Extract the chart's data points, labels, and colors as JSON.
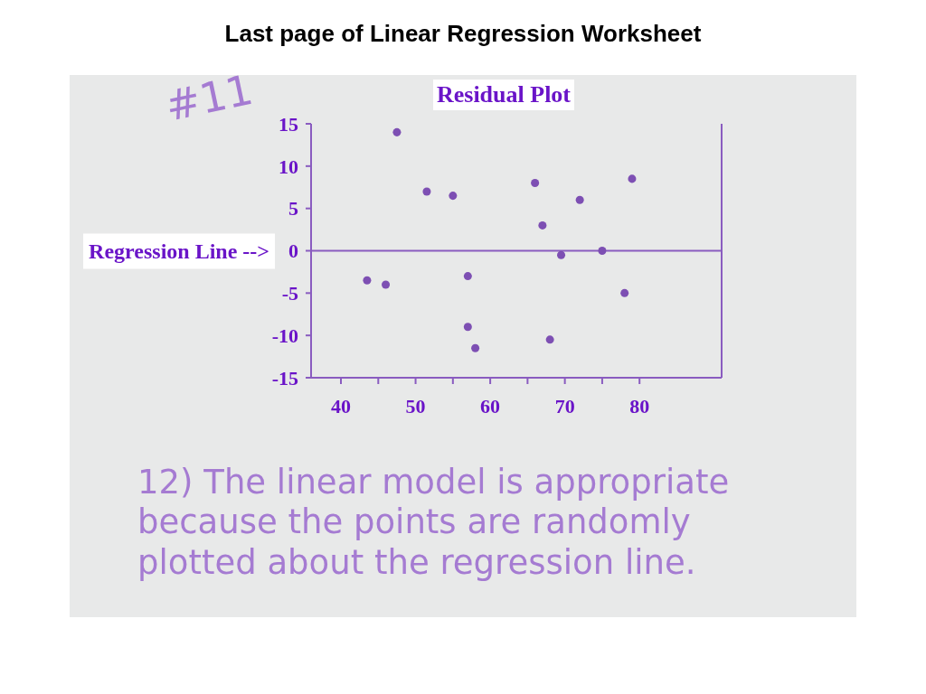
{
  "chart_data": {
    "type": "scatter",
    "title": "Last page of Linear Regression Worksheet",
    "subtitle": "Residual Plot",
    "x": [
      43.5,
      46,
      47.5,
      51.5,
      55,
      57,
      57,
      58,
      66,
      67,
      68,
      69.5,
      72,
      75,
      78,
      79
    ],
    "values": [
      -3.5,
      -4,
      14,
      7,
      6.5,
      -3,
      -9,
      -11.5,
      8,
      3,
      -10.5,
      -0.5,
      6,
      0,
      -5,
      8.5
    ],
    "color": "#7d4fb3",
    "marker": "circle",
    "xlim": [
      36,
      91
    ],
    "ylim": [
      -15,
      15
    ],
    "xticks": [
      40,
      {
        "value": 45,
        "label": null
      },
      50,
      {
        "value": 55,
        "label": null
      },
      60,
      {
        "value": 65,
        "label": null
      },
      70,
      {
        "value": 75,
        "label": null
      },
      80
    ],
    "yticks": [
      -15,
      -10,
      -5,
      0,
      5,
      10,
      15
    ],
    "ref_lines": [
      {
        "axis": "y",
        "value": 0,
        "label": "Regression Line -->",
        "color": "#8a5cc0"
      }
    ],
    "annotations": [
      "#11",
      "12) The linear model is appropriate because the points are randomly plotted about the regression line."
    ]
  }
}
